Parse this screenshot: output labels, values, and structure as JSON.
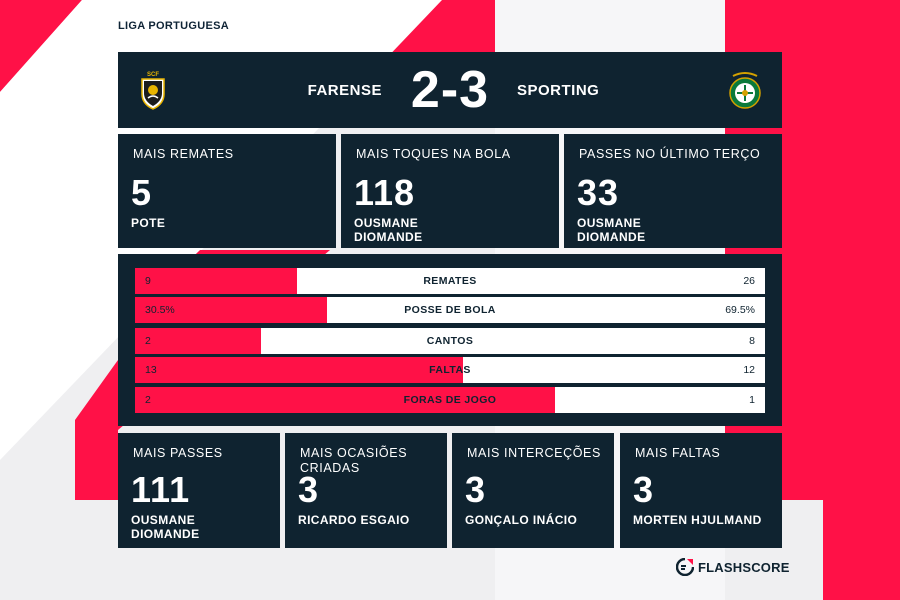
{
  "league": "LIGA PORTUGUESA",
  "colors": {
    "panel": "#0f2330",
    "accent": "#ff1147",
    "page_bg": "#efeff1"
  },
  "match": {
    "home_team": "FARENSE",
    "away_team": "SPORTING",
    "score": "2-3",
    "home_crest_icon": "farense-crest-icon",
    "away_crest_icon": "sporting-crest-icon"
  },
  "top_cards": [
    {
      "title": "MAIS REMATES",
      "value": "5",
      "player": "POTE"
    },
    {
      "title": "MAIS TOQUES NA BOLA",
      "value": "118",
      "player": "OUSMANE DIOMANDE"
    },
    {
      "title": "PASSES NO ÚLTIMO TERÇO",
      "value": "33",
      "player": "OUSMANE DIOMANDE"
    }
  ],
  "stats": [
    {
      "label": "REMATES",
      "home": "9",
      "away": "26",
      "home_share": 0.257
    },
    {
      "label": "POSSE DE BOLA",
      "home": "30.5%",
      "away": "69.5%",
      "home_share": 0.305
    },
    {
      "label": "CANTOS",
      "home": "2",
      "away": "8",
      "home_share": 0.2
    },
    {
      "label": "FALTAS",
      "home": "13",
      "away": "12",
      "home_share": 0.52
    },
    {
      "label": "FORAS DE JOGO",
      "home": "2",
      "away": "1",
      "home_share": 0.667
    }
  ],
  "bottom_cards": [
    {
      "title": "MAIS PASSES",
      "value": "111",
      "player": "OUSMANE DIOMANDE"
    },
    {
      "title": "MAIS OCASIÕES CRIADAS",
      "value": "3",
      "player": "RICARDO ESGAIO"
    },
    {
      "title": "MAIS INTERCEÇÕES",
      "value": "3",
      "player": "GONÇALO INÁCIO"
    },
    {
      "title": "MAIS FALTAS",
      "value": "3",
      "player": "MORTEN HJULMAND"
    }
  ],
  "brand": {
    "name": "FLASHSCORE",
    "icon": "flashscore-logo-icon"
  }
}
